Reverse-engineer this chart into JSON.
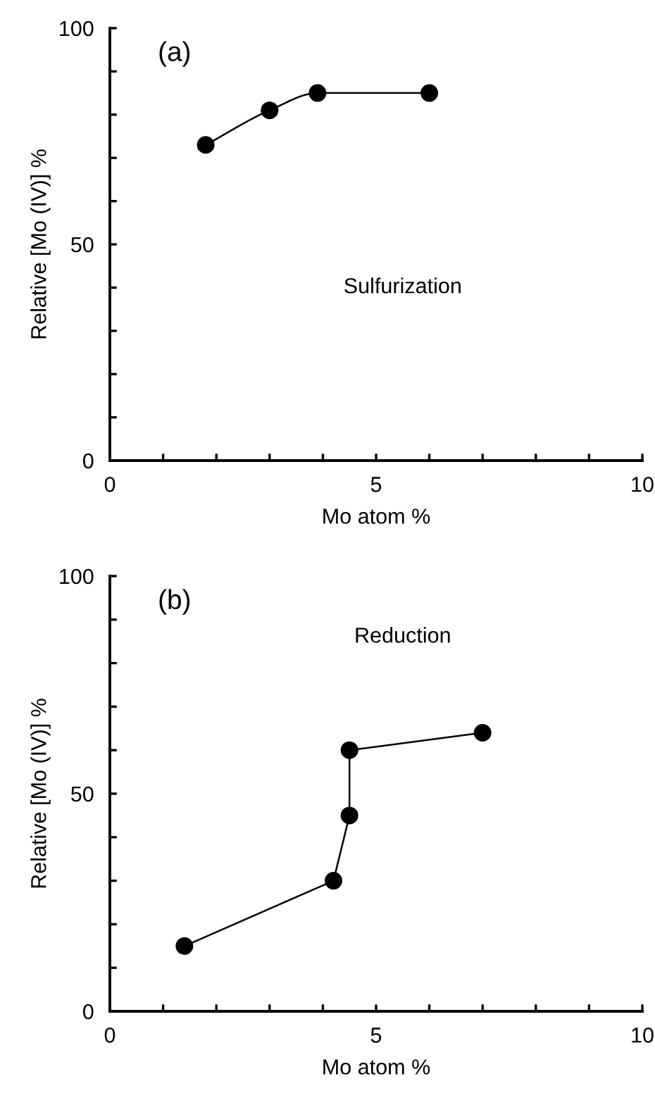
{
  "chart_data": [
    {
      "type": "line",
      "xlabel": "Mo atom %",
      "ylabel": "Relative [Mo (IV)] %",
      "annotations": [
        "(a)",
        "Sulfurization"
      ],
      "x": [
        1.8,
        3.0,
        3.9,
        6.0
      ],
      "series": [
        {
          "color": "#000000",
          "values": [
            73,
            81,
            85,
            85
          ]
        }
      ],
      "marker": "circle",
      "line_style": "solid",
      "xlim": [
        0,
        10
      ],
      "ylim": [
        0,
        100
      ],
      "xticks": [
        0,
        {
          "value": 1,
          "label": null
        },
        {
          "value": 2,
          "label": null
        },
        {
          "value": 3,
          "label": null
        },
        {
          "value": 4,
          "label": null
        },
        5,
        {
          "value": 6,
          "label": null
        },
        {
          "value": 7,
          "label": null
        },
        {
          "value": 8,
          "label": null
        },
        {
          "value": 9,
          "label": null
        },
        10
      ],
      "yticks": [
        0,
        {
          "value": 10,
          "label": null
        },
        {
          "value": 20,
          "label": null
        },
        {
          "value": 30,
          "label": null
        },
        {
          "value": 40,
          "label": null
        },
        50,
        {
          "value": 60,
          "label": null
        },
        {
          "value": 70,
          "label": null
        },
        {
          "value": 80,
          "label": null
        },
        {
          "value": 90,
          "label": null
        },
        100
      ]
    },
    {
      "type": "line",
      "xlabel": "Mo atom %",
      "ylabel": "Relative [Mo (IV)] %",
      "annotations": [
        "(b)",
        "Reduction"
      ],
      "x": [
        1.4,
        4.2,
        4.5,
        4.5,
        7.0
      ],
      "series": [
        {
          "color": "#000000",
          "values": [
            15,
            30,
            45,
            60,
            64
          ]
        }
      ],
      "marker": "circle",
      "line_style": "solid",
      "xlim": [
        0,
        10
      ],
      "ylim": [
        0,
        100
      ],
      "xticks": [
        0,
        {
          "value": 1,
          "label": null
        },
        {
          "value": 2,
          "label": null
        },
        {
          "value": 3,
          "label": null
        },
        {
          "value": 4,
          "label": null
        },
        5,
        {
          "value": 6,
          "label": null
        },
        {
          "value": 7,
          "label": null
        },
        {
          "value": 8,
          "label": null
        },
        {
          "value": 9,
          "label": null
        },
        10
      ],
      "yticks": [
        0,
        {
          "value": 10,
          "label": null
        },
        {
          "value": 20,
          "label": null
        },
        {
          "value": 30,
          "label": null
        },
        {
          "value": 40,
          "label": null
        },
        50,
        {
          "value": 60,
          "label": null
        },
        {
          "value": 70,
          "label": null
        },
        {
          "value": 80,
          "label": null
        },
        {
          "value": 90,
          "label": null
        },
        100
      ]
    }
  ]
}
